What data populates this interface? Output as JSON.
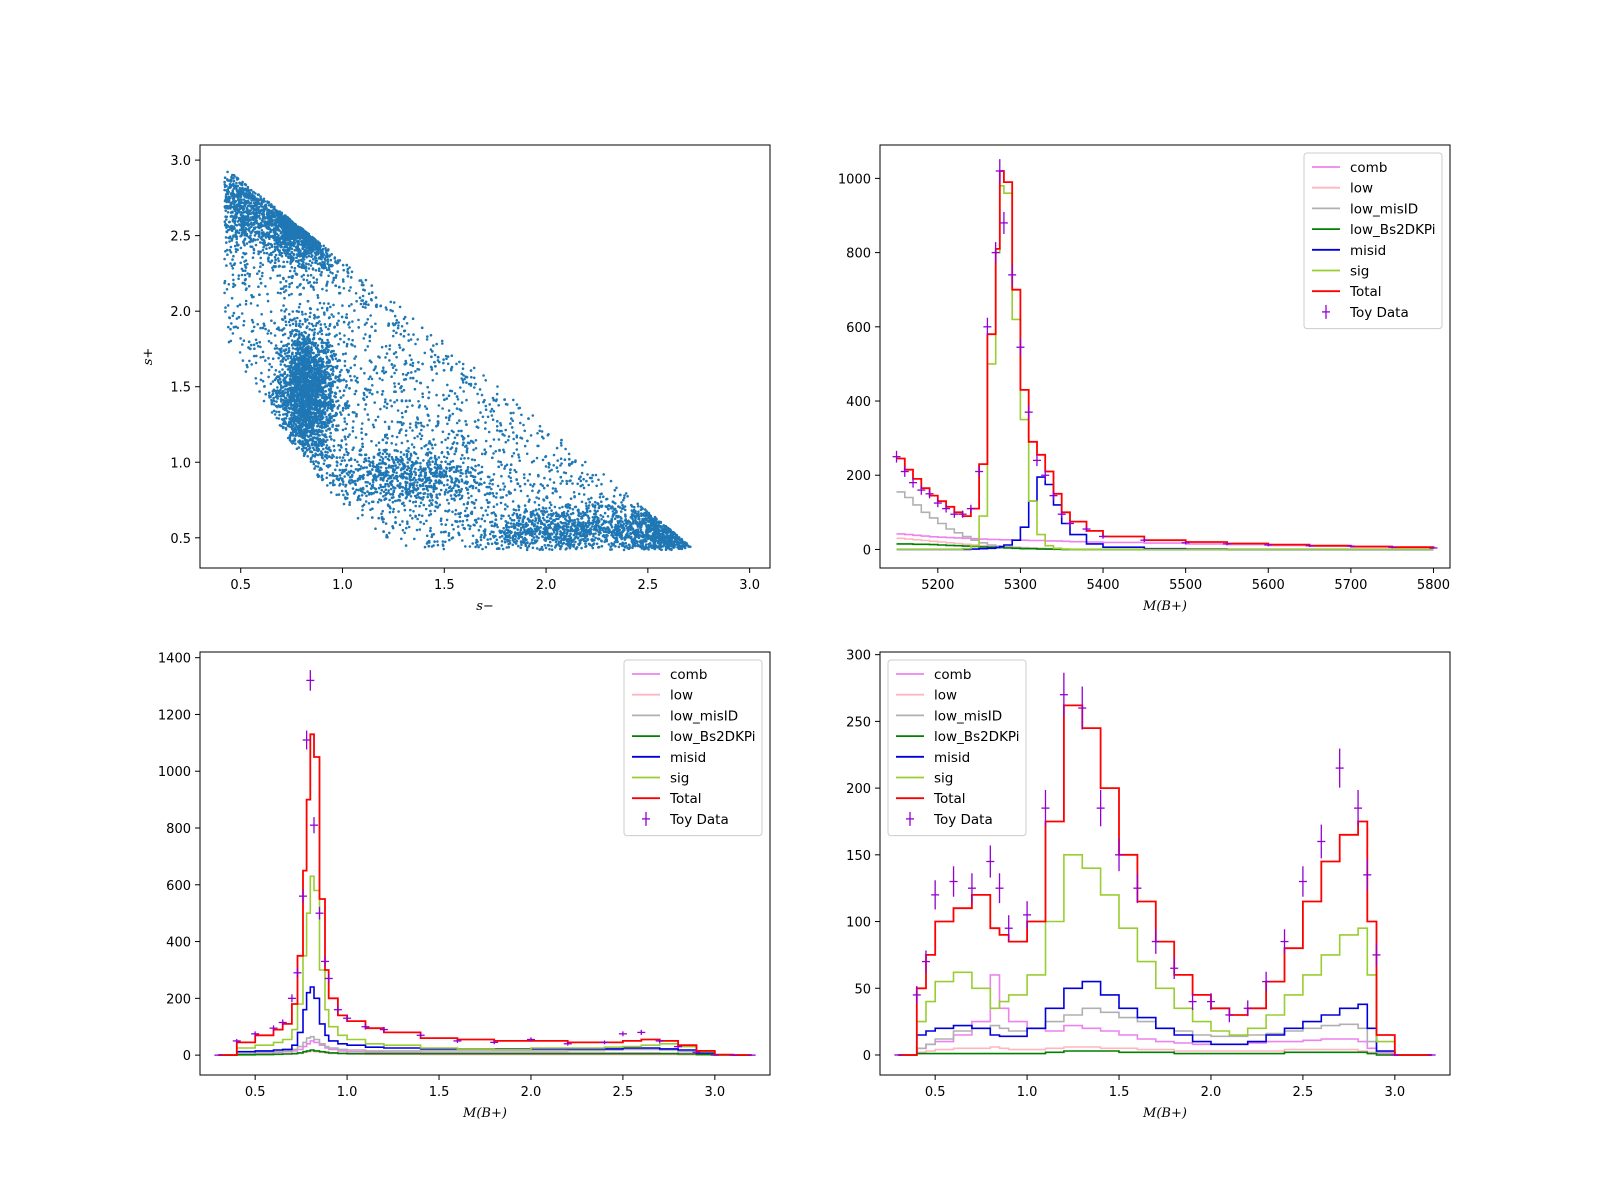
{
  "chart_data": [
    {
      "type": "scatter",
      "xlabel": "s−",
      "ylabel": "s+",
      "xlim": [
        0.3,
        3.1
      ],
      "ylim": [
        0.3,
        3.1
      ],
      "xticks": [
        "0.5",
        "1.0",
        "1.5",
        "2.0",
        "2.5",
        "3.0"
      ],
      "yticks": [
        "0.5",
        "1.0",
        "1.5",
        "2.0",
        "2.5",
        "3.0"
      ],
      "point_color": "#1f77b4",
      "grid": false,
      "description_points": [
        {
          "x": 0.45,
          "y": 2.75
        },
        {
          "x": 0.55,
          "y": 2.85
        },
        {
          "x": 0.85,
          "y": 2.65
        },
        {
          "x": 0.8,
          "y": 1.45
        },
        {
          "x": 0.75,
          "y": 1.2
        },
        {
          "x": 1.2,
          "y": 0.9
        },
        {
          "x": 1.8,
          "y": 0.65
        },
        {
          "x": 2.1,
          "y": 0.55
        },
        {
          "x": 2.6,
          "y": 0.6
        },
        {
          "x": 2.8,
          "y": 0.5
        },
        {
          "x": 2.5,
          "y": 0.9
        },
        {
          "x": 1.5,
          "y": 1.8
        }
      ]
    },
    {
      "type": "line",
      "xlabel": "M(B+)",
      "xlim": [
        5130,
        5820
      ],
      "ylim": [
        -50,
        1090
      ],
      "xticks": [
        "5200",
        "5300",
        "5400",
        "5500",
        "5600",
        "5700",
        "5800"
      ],
      "yticks": [
        "0",
        "200",
        "400",
        "600",
        "800",
        "1000"
      ],
      "legend": "top-right",
      "x": [
        5150,
        5160,
        5170,
        5180,
        5190,
        5200,
        5210,
        5220,
        5230,
        5240,
        5250,
        5260,
        5270,
        5275,
        5280,
        5290,
        5300,
        5310,
        5320,
        5330,
        5340,
        5350,
        5360,
        5380,
        5400,
        5450,
        5500,
        5550,
        5600,
        5650,
        5700,
        5750,
        5800
      ],
      "series": [
        {
          "name": "comb",
          "color": "#ee82ee",
          "values": [
            42,
            40,
            38,
            36,
            34,
            33,
            32,
            31,
            30,
            29,
            28,
            27,
            27,
            26,
            26,
            25,
            25,
            24,
            24,
            23,
            23,
            22,
            21,
            20,
            19,
            17,
            15,
            13,
            11,
            9,
            7,
            6,
            4
          ]
        },
        {
          "name": "low",
          "color": "#ffb6c1",
          "values": [
            30,
            28,
            26,
            24,
            22,
            20,
            18,
            16,
            14,
            12,
            10,
            9,
            8,
            8,
            7,
            6,
            5,
            4,
            3,
            2,
            1,
            0,
            0,
            0,
            0,
            0,
            0,
            0,
            0,
            0,
            0,
            0,
            0
          ]
        },
        {
          "name": "low_misID",
          "color": "#b0b0b0",
          "values": [
            155,
            140,
            120,
            100,
            85,
            70,
            55,
            45,
            35,
            25,
            18,
            12,
            9,
            8,
            7,
            5,
            4,
            3,
            2,
            1,
            0,
            0,
            0,
            0,
            0,
            0,
            0,
            0,
            0,
            0,
            0,
            0,
            0
          ]
        },
        {
          "name": "low_Bs2DKPi",
          "color": "#008000",
          "values": [
            15,
            15,
            14,
            14,
            13,
            12,
            11,
            10,
            9,
            8,
            7,
            6,
            5,
            5,
            4,
            3,
            2,
            2,
            1,
            1,
            1,
            0,
            0,
            0,
            0,
            0,
            0,
            0,
            0,
            0,
            0,
            0,
            0
          ]
        },
        {
          "name": "misid",
          "color": "#0000dd",
          "values": [
            0,
            0,
            0,
            0,
            0,
            0,
            0,
            0,
            0,
            1,
            2,
            3,
            5,
            8,
            12,
            25,
            60,
            130,
            195,
            175,
            120,
            70,
            40,
            15,
            6,
            2,
            1,
            0,
            0,
            0,
            0,
            0,
            0
          ]
        },
        {
          "name": "sig",
          "color": "#9acd32",
          "values": [
            0,
            0,
            0,
            0,
            0,
            0,
            0,
            0,
            2,
            10,
            90,
            500,
            800,
            980,
            960,
            620,
            350,
            130,
            40,
            10,
            3,
            1,
            0,
            0,
            0,
            0,
            0,
            0,
            0,
            0,
            0,
            0,
            0
          ]
        },
        {
          "name": "Total",
          "color": "#ff0000",
          "values": [
            245,
            215,
            190,
            165,
            145,
            130,
            115,
            100,
            90,
            110,
            230,
            580,
            810,
            1020,
            990,
            700,
            430,
            290,
            255,
            210,
            150,
            100,
            75,
            50,
            35,
            25,
            20,
            16,
            13,
            10,
            8,
            6,
            5
          ]
        },
        {
          "name": "Toy Data",
          "color": "#9400d3",
          "values": [
            250,
            210,
            180,
            160,
            150,
            125,
            110,
            95,
            95,
            110,
            210,
            600,
            800,
            1020,
            880,
            740,
            545,
            370,
            240,
            200,
            145,
            95,
            70,
            55,
            35,
            25,
            18,
            15,
            12,
            10,
            9,
            6,
            4
          ]
        }
      ]
    },
    {
      "type": "line",
      "xlabel": "M(B+)",
      "xlim": [
        0.2,
        3.3
      ],
      "ylim": [
        -70,
        1420
      ],
      "xticks": [
        "0.5",
        "1.0",
        "1.5",
        "2.0",
        "2.5",
        "3.0"
      ],
      "yticks": [
        "0",
        "200",
        "400",
        "600",
        "800",
        "1000",
        "1200",
        "1400"
      ],
      "legend": "top-right",
      "x": [
        0.3,
        0.4,
        0.5,
        0.6,
        0.65,
        0.7,
        0.73,
        0.76,
        0.78,
        0.8,
        0.82,
        0.85,
        0.88,
        0.9,
        0.95,
        1.0,
        1.1,
        1.2,
        1.4,
        1.6,
        1.8,
        2.0,
        2.2,
        2.4,
        2.5,
        2.6,
        2.7,
        2.8,
        2.9,
        3.0,
        3.1,
        3.2
      ],
      "series": [
        {
          "name": "comb",
          "color": "#ee82ee",
          "values": [
            0,
            5,
            8,
            10,
            12,
            15,
            20,
            30,
            40,
            50,
            45,
            35,
            25,
            20,
            15,
            12,
            10,
            9,
            8,
            8,
            8,
            8,
            7,
            7,
            7,
            7,
            6,
            5,
            3,
            0,
            0,
            0
          ]
        },
        {
          "name": "low",
          "color": "#ffb6c1",
          "values": [
            0,
            2,
            3,
            4,
            5,
            6,
            8,
            10,
            12,
            14,
            12,
            10,
            8,
            6,
            5,
            4,
            3,
            3,
            2,
            2,
            2,
            2,
            2,
            2,
            2,
            2,
            2,
            1,
            1,
            0,
            0,
            0
          ]
        },
        {
          "name": "low_misID",
          "color": "#b0b0b0",
          "values": [
            0,
            5,
            10,
            12,
            15,
            20,
            30,
            45,
            60,
            65,
            55,
            40,
            30,
            25,
            20,
            18,
            15,
            15,
            15,
            15,
            15,
            15,
            16,
            18,
            20,
            20,
            18,
            12,
            5,
            0,
            0,
            0
          ]
        },
        {
          "name": "low_Bs2DKPi",
          "color": "#008000",
          "values": [
            0,
            1,
            2,
            3,
            4,
            5,
            8,
            12,
            15,
            18,
            15,
            12,
            10,
            8,
            6,
            5,
            5,
            5,
            5,
            5,
            5,
            5,
            5,
            5,
            5,
            5,
            5,
            4,
            2,
            0,
            0,
            0
          ]
        },
        {
          "name": "misid",
          "color": "#0000dd",
          "values": [
            0,
            12,
            15,
            18,
            20,
            35,
            80,
            160,
            220,
            240,
            200,
            110,
            70,
            50,
            40,
            35,
            28,
            25,
            22,
            22,
            22,
            22,
            22,
            22,
            25,
            25,
            22,
            18,
            8,
            0,
            0,
            0
          ]
        },
        {
          "name": "sig",
          "color": "#9acd32",
          "values": [
            0,
            25,
            35,
            45,
            55,
            90,
            180,
            350,
            500,
            630,
            580,
            300,
            160,
            100,
            70,
            55,
            40,
            35,
            25,
            22,
            20,
            25,
            25,
            28,
            30,
            35,
            40,
            30,
            12,
            0,
            0,
            0
          ]
        },
        {
          "name": "Total",
          "color": "#ff0000",
          "values": [
            0,
            45,
            70,
            90,
            110,
            180,
            350,
            650,
            900,
            1130,
            1050,
            550,
            300,
            200,
            140,
            120,
            95,
            80,
            60,
            55,
            50,
            50,
            45,
            45,
            50,
            55,
            50,
            35,
            15,
            2,
            0,
            0
          ]
        },
        {
          "name": "Toy Data",
          "color": "#9400d3",
          "values": [
            0,
            50,
            75,
            95,
            115,
            200,
            290,
            560,
            1110,
            1320,
            810,
            500,
            330,
            270,
            160,
            130,
            100,
            90,
            70,
            50,
            45,
            55,
            40,
            45,
            75,
            80,
            50,
            30,
            10,
            0,
            0,
            0
          ]
        }
      ]
    },
    {
      "type": "line",
      "xlabel": "M(B+)",
      "xlim": [
        0.2,
        3.3
      ],
      "ylim": [
        -15,
        302
      ],
      "xticks": [
        "0.5",
        "1.0",
        "1.5",
        "2.0",
        "2.5",
        "3.0"
      ],
      "yticks": [
        "0",
        "50",
        "100",
        "150",
        "200",
        "250",
        "300"
      ],
      "legend": "top-left",
      "x": [
        0.3,
        0.4,
        0.45,
        0.5,
        0.6,
        0.7,
        0.8,
        0.85,
        0.9,
        1.0,
        1.1,
        1.2,
        1.3,
        1.4,
        1.5,
        1.6,
        1.7,
        1.8,
        1.9,
        2.0,
        2.1,
        2.2,
        2.3,
        2.4,
        2.5,
        2.6,
        2.7,
        2.8,
        2.85,
        2.9,
        3.0,
        3.2
      ],
      "series": [
        {
          "name": "comb",
          "color": "#ee82ee",
          "values": [
            0,
            5,
            8,
            10,
            15,
            25,
            60,
            35,
            25,
            20,
            18,
            22,
            20,
            18,
            15,
            12,
            10,
            9,
            8,
            8,
            8,
            9,
            10,
            10,
            11,
            12,
            12,
            10,
            5,
            1,
            0,
            0
          ]
        },
        {
          "name": "low",
          "color": "#ffb6c1",
          "values": [
            0,
            2,
            3,
            4,
            5,
            5,
            6,
            5,
            4,
            4,
            5,
            6,
            6,
            5,
            5,
            4,
            4,
            3,
            3,
            3,
            3,
            3,
            3,
            4,
            4,
            4,
            4,
            3,
            2,
            0,
            0,
            0
          ]
        },
        {
          "name": "low_misID",
          "color": "#b0b0b0",
          "values": [
            0,
            5,
            8,
            12,
            18,
            20,
            22,
            20,
            18,
            20,
            25,
            30,
            35,
            32,
            28,
            25,
            20,
            18,
            15,
            14,
            14,
            15,
            16,
            18,
            20,
            22,
            23,
            20,
            10,
            2,
            0,
            0
          ]
        },
        {
          "name": "low_Bs2DKPi",
          "color": "#008000",
          "values": [
            0,
            1,
            1,
            1,
            1,
            1,
            1,
            1,
            1,
            1,
            2,
            3,
            3,
            3,
            2,
            2,
            2,
            1,
            1,
            1,
            1,
            1,
            1,
            2,
            2,
            2,
            2,
            2,
            1,
            0,
            0,
            0
          ]
        },
        {
          "name": "misid",
          "color": "#0000dd",
          "values": [
            0,
            15,
            18,
            20,
            22,
            20,
            15,
            14,
            14,
            20,
            35,
            50,
            55,
            45,
            35,
            28,
            20,
            15,
            10,
            8,
            8,
            10,
            15,
            20,
            25,
            30,
            35,
            38,
            20,
            3,
            0,
            0
          ]
        },
        {
          "name": "sig",
          "color": "#9acd32",
          "values": [
            0,
            25,
            40,
            55,
            62,
            50,
            35,
            40,
            45,
            60,
            100,
            150,
            140,
            120,
            95,
            70,
            50,
            35,
            25,
            18,
            15,
            20,
            30,
            45,
            60,
            75,
            90,
            95,
            60,
            10,
            0,
            0
          ]
        },
        {
          "name": "Total",
          "color": "#ff0000",
          "values": [
            0,
            50,
            75,
            100,
            110,
            120,
            95,
            90,
            85,
            100,
            175,
            262,
            245,
            200,
            150,
            115,
            85,
            60,
            45,
            35,
            30,
            35,
            55,
            80,
            115,
            145,
            165,
            175,
            100,
            15,
            0,
            0
          ]
        },
        {
          "name": "Toy Data",
          "color": "#9400d3",
          "values": [
            0,
            45,
            70,
            120,
            130,
            125,
            145,
            125,
            95,
            105,
            185,
            270,
            260,
            185,
            150,
            125,
            85,
            65,
            40,
            40,
            30,
            35,
            55,
            85,
            130,
            160,
            215,
            185,
            135,
            75,
            0,
            0
          ]
        }
      ]
    }
  ]
}
